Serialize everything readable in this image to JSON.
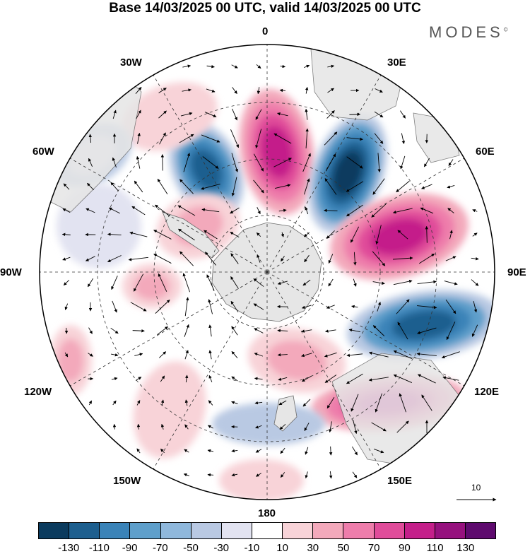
{
  "title": "Base 14/03/2025 00 UTC, valid 14/03/2025 00 UTC",
  "brand": "MODES",
  "brand_mark": "©",
  "longitude_labels": {
    "lon_0": "0",
    "lon_30e": "30E",
    "lon_60e": "60E",
    "lon_90e": "90E",
    "lon_120e": "120E",
    "lon_150e": "150E",
    "lon_180": "180",
    "lon_150w": "150W",
    "lon_120w": "120W",
    "lon_90w": "90W",
    "lon_60w": "60W",
    "lon_30w": "30W"
  },
  "vector_scale_label": "10",
  "colorbar": {
    "colors": [
      "#0b3b5e",
      "#1d5f8f",
      "#3a83b8",
      "#5e9fcb",
      "#8fb8dc",
      "#b9c9e3",
      "#e2e3f1",
      "#ffffff",
      "#f8d3d8",
      "#f3a9bb",
      "#ee7dab",
      "#e04c9a",
      "#c41f8a",
      "#96117e",
      "#5e0a6e"
    ],
    "ticks": [
      "-130",
      "-110",
      "-90",
      "-70",
      "-50",
      "-30",
      "-10",
      "10",
      "30",
      "50",
      "70",
      "90",
      "110",
      "130"
    ]
  },
  "colors": {
    "land": "#e6e6e6",
    "coast": "#6b6b6b",
    "grid": "#333333"
  }
}
